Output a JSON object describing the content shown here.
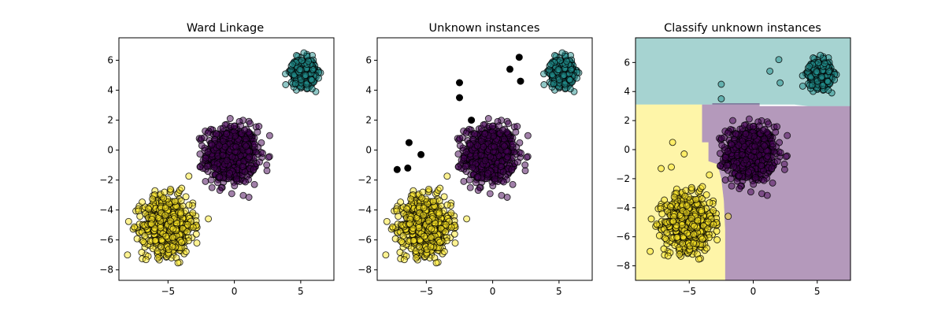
{
  "chart_data": [
    {
      "type": "scatter",
      "title": "Ward Linkage",
      "xlabel": "",
      "ylabel": "",
      "xlim": [
        -8.7,
        7.5
      ],
      "ylim": [
        -8.7,
        7.5
      ],
      "xticks": [
        "−5",
        "0",
        "5"
      ],
      "yticks": [
        "−8",
        "−6",
        "−4",
        "−2",
        "0",
        "2",
        "4",
        "6"
      ],
      "clusters": [
        {
          "color": "#440154",
          "center": [
            -0.2,
            -0.3
          ],
          "spread": 0.95,
          "count": 700,
          "extent": [
            -3.2,
            3.2,
            -3.9,
            3.1
          ]
        },
        {
          "color": "#fde725",
          "center": [
            -5.0,
            -5.0
          ],
          "spread": 0.95,
          "count": 700,
          "extent": [
            -8.3,
            -1.9,
            -8.0,
            -1.1
          ]
        },
        {
          "color": "#21908d",
          "center": [
            5.2,
            5.2
          ],
          "spread": 0.45,
          "count": 400,
          "extent": [
            2.9,
            6.9,
            3.2,
            6.9
          ]
        }
      ]
    },
    {
      "type": "scatter",
      "title": "Unknown instances",
      "xlabel": "",
      "ylabel": "",
      "xlim": [
        -8.7,
        7.5
      ],
      "ylim": [
        -8.7,
        7.5
      ],
      "xticks": [
        "−5",
        "0",
        "5"
      ],
      "yticks": [
        "−8",
        "−6",
        "−4",
        "−2",
        "0",
        "2",
        "4",
        "6"
      ],
      "unknown_points": {
        "color": "#000000",
        "x": [
          -7.2,
          -6.4,
          -6.3,
          -5.4,
          -2.5,
          -2.5,
          -1.6,
          1.3,
          2.0,
          2.1
        ],
        "y": [
          -1.3,
          -1.2,
          0.5,
          -0.3,
          3.5,
          4.5,
          2.0,
          5.4,
          6.2,
          4.6
        ]
      }
    },
    {
      "type": "scatter",
      "title": "Classify unknown instances",
      "xlabel": "",
      "ylabel": "",
      "xlim": [
        -9.2,
        7.6
      ],
      "ylim": [
        -9.0,
        7.7
      ],
      "xticks": [
        "−5",
        "0",
        "5"
      ],
      "yticks": [
        "−8",
        "−6",
        "−4",
        "−2",
        "0",
        "2",
        "4",
        "6"
      ],
      "region_colors": {
        "yellow": "#fde725",
        "teal": "#21908d",
        "purple": "#440154"
      },
      "region_opacity": 0.4,
      "unknown_points_colored": {
        "x": [
          -7.2,
          -6.4,
          -6.3,
          -5.4,
          -2.5,
          -2.5,
          -1.6,
          1.3,
          2.0,
          2.1
        ],
        "y": [
          -1.3,
          -1.2,
          0.5,
          -0.3,
          3.5,
          4.5,
          2.0,
          5.4,
          6.2,
          4.6
        ],
        "class": [
          "yellow",
          "yellow",
          "yellow",
          "yellow",
          "teal",
          "teal",
          "purple",
          "teal",
          "teal",
          "teal"
        ]
      }
    }
  ]
}
